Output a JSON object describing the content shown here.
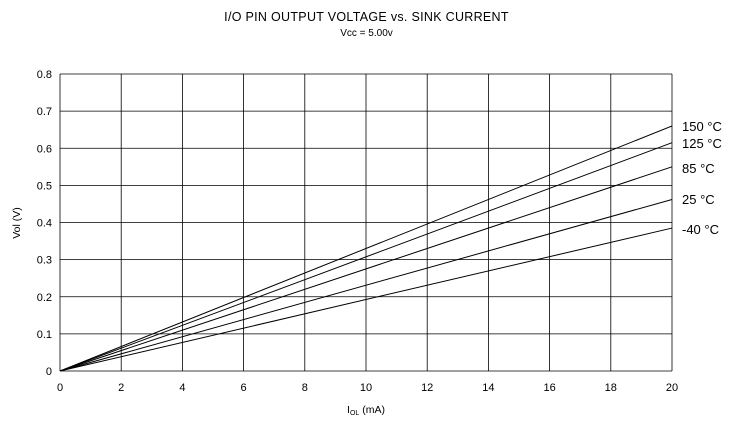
{
  "chart_data": {
    "type": "line",
    "title": "I/O PIN OUTPUT VOLTAGE vs. SINK CURRENT",
    "subtitle": "Vcc = 5.00v",
    "xlabel_main": "I",
    "xlabel_sub": "OL",
    "xlabel_unit": " (mA)",
    "ylabel": "Vol (V)",
    "xlim": [
      0,
      20
    ],
    "ylim": [
      0,
      0.8
    ],
    "x_ticks": [
      "0",
      "2",
      "4",
      "6",
      "8",
      "10",
      "12",
      "14",
      "16",
      "18",
      "20"
    ],
    "y_ticks": [
      "0",
      "0.1",
      "0.2",
      "0.3",
      "0.4",
      "0.5",
      "0.6",
      "0.7",
      "0.8"
    ],
    "grid": true,
    "legend": "right-of-lines",
    "line_color": "#000000",
    "series": [
      {
        "name": "150 °C",
        "x": [
          0,
          20
        ],
        "y": [
          0,
          0.66
        ]
      },
      {
        "name": "125 °C",
        "x": [
          0,
          20
        ],
        "y": [
          0,
          0.615
        ]
      },
      {
        "name": "85 °C",
        "x": [
          0,
          20
        ],
        "y": [
          0,
          0.55
        ]
      },
      {
        "name": "25 °C",
        "x": [
          0,
          20
        ],
        "y": [
          0,
          0.462
        ]
      },
      {
        "name": "-40 °C",
        "x": [
          0,
          20
        ],
        "y": [
          0,
          0.385
        ]
      }
    ]
  }
}
